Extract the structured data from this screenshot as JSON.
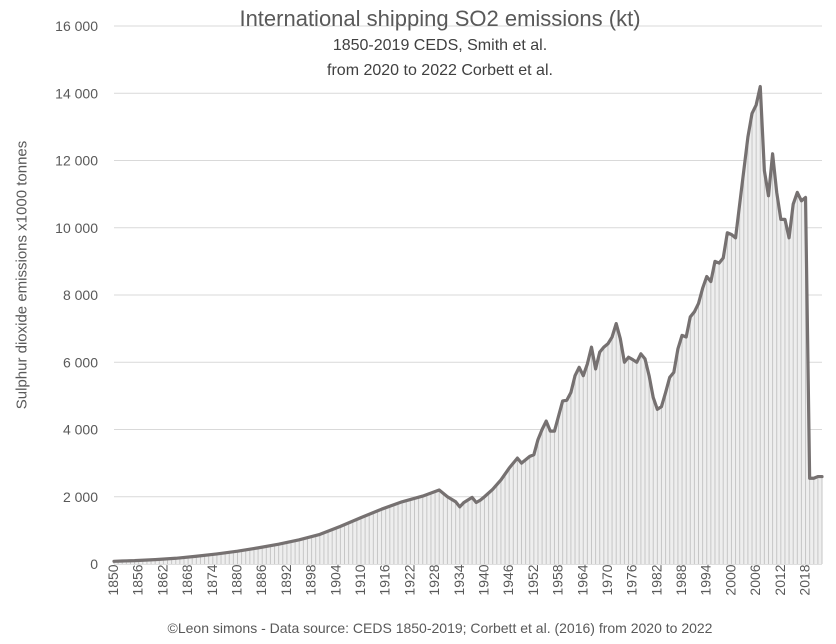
{
  "chart_data": {
    "type": "area",
    "title": "International shipping SO2 emissions (kt)",
    "subtitle_lines": [
      "1850-2019 CEDS, Smith et al.",
      "from 2020 to 2022 Corbett et al."
    ],
    "ylabel": "Sulphur dioxide emissions  x1000 tonnes",
    "xlabel": "",
    "source": "©Leon simons - Data source: CEDS 1850-2019; Corbett et al. (2016) from 2020 to 2022",
    "ylim": [
      0,
      16000
    ],
    "xlim": [
      1850,
      2022
    ],
    "y_ticks": [
      0,
      2000,
      4000,
      6000,
      8000,
      10000,
      12000,
      14000,
      16000
    ],
    "y_tick_labels": [
      "0",
      "2 000",
      "4 000",
      "6 000",
      "8 000",
      "10 000",
      "12 000",
      "14 000",
      "16 000"
    ],
    "x_ticks": [
      1850,
      1856,
      1862,
      1868,
      1874,
      1880,
      1886,
      1892,
      1898,
      1904,
      1910,
      1916,
      1922,
      1928,
      1934,
      1940,
      1946,
      1952,
      1958,
      1964,
      1970,
      1976,
      1982,
      1988,
      1994,
      2000,
      2006,
      2012,
      2018
    ],
    "grid": true,
    "line_color": "#767171",
    "fill_color": "#c6c6c6",
    "grid_color": "#d9d9d9",
    "series": [
      {
        "name": "",
        "x": [
          1850,
          1852,
          1855,
          1860,
          1865,
          1870,
          1875,
          1880,
          1885,
          1890,
          1895,
          1900,
          1905,
          1910,
          1915,
          1920,
          1925,
          1929,
          1931,
          1933,
          1934,
          1935,
          1937,
          1938,
          1939,
          1940,
          1942,
          1944,
          1946,
          1948,
          1949,
          1950,
          1951,
          1952,
          1953,
          1954,
          1955,
          1956,
          1957,
          1958,
          1959,
          1960,
          1961,
          1962,
          1963,
          1964,
          1965,
          1966,
          1967,
          1968,
          1969,
          1970,
          1971,
          1972,
          1973,
          1974,
          1975,
          1976,
          1977,
          1978,
          1979,
          1980,
          1981,
          1982,
          1983,
          1984,
          1985,
          1986,
          1987,
          1988,
          1989,
          1990,
          1991,
          1992,
          1993,
          1994,
          1995,
          1996,
          1997,
          1998,
          1999,
          2000,
          2001,
          2002,
          2003,
          2004,
          2005,
          2006,
          2007,
          2008,
          2009,
          2010,
          2011,
          2012,
          2013,
          2014,
          2015,
          2016,
          2017,
          2018,
          2019,
          2020,
          2021,
          2022
        ],
        "values": [
          80,
          90,
          100,
          130,
          170,
          230,
          300,
          380,
          480,
          590,
          720,
          880,
          1120,
          1380,
          1630,
          1850,
          2020,
          2200,
          2000,
          1850,
          1700,
          1830,
          1980,
          1830,
          1900,
          2000,
          2220,
          2500,
          2850,
          3150,
          3000,
          3100,
          3200,
          3250,
          3700,
          4000,
          4250,
          3950,
          3950,
          4400,
          4850,
          4870,
          5100,
          5600,
          5850,
          5600,
          5950,
          6450,
          5800,
          6300,
          6450,
          6550,
          6750,
          7150,
          6700,
          6000,
          6150,
          6080,
          6000,
          6250,
          6100,
          5600,
          4950,
          4600,
          4680,
          5100,
          5550,
          5700,
          6400,
          6800,
          6750,
          7350,
          7500,
          7750,
          8200,
          8550,
          8400,
          9000,
          8950,
          9100,
          9850,
          9800,
          9700,
          10700,
          11700,
          12700,
          13400,
          13650,
          14200,
          11700,
          10950,
          12200,
          11050,
          10250,
          10250,
          9700,
          10700,
          11050,
          10800,
          10900,
          2550,
          2550,
          2600,
          2600
        ]
      }
    ]
  }
}
